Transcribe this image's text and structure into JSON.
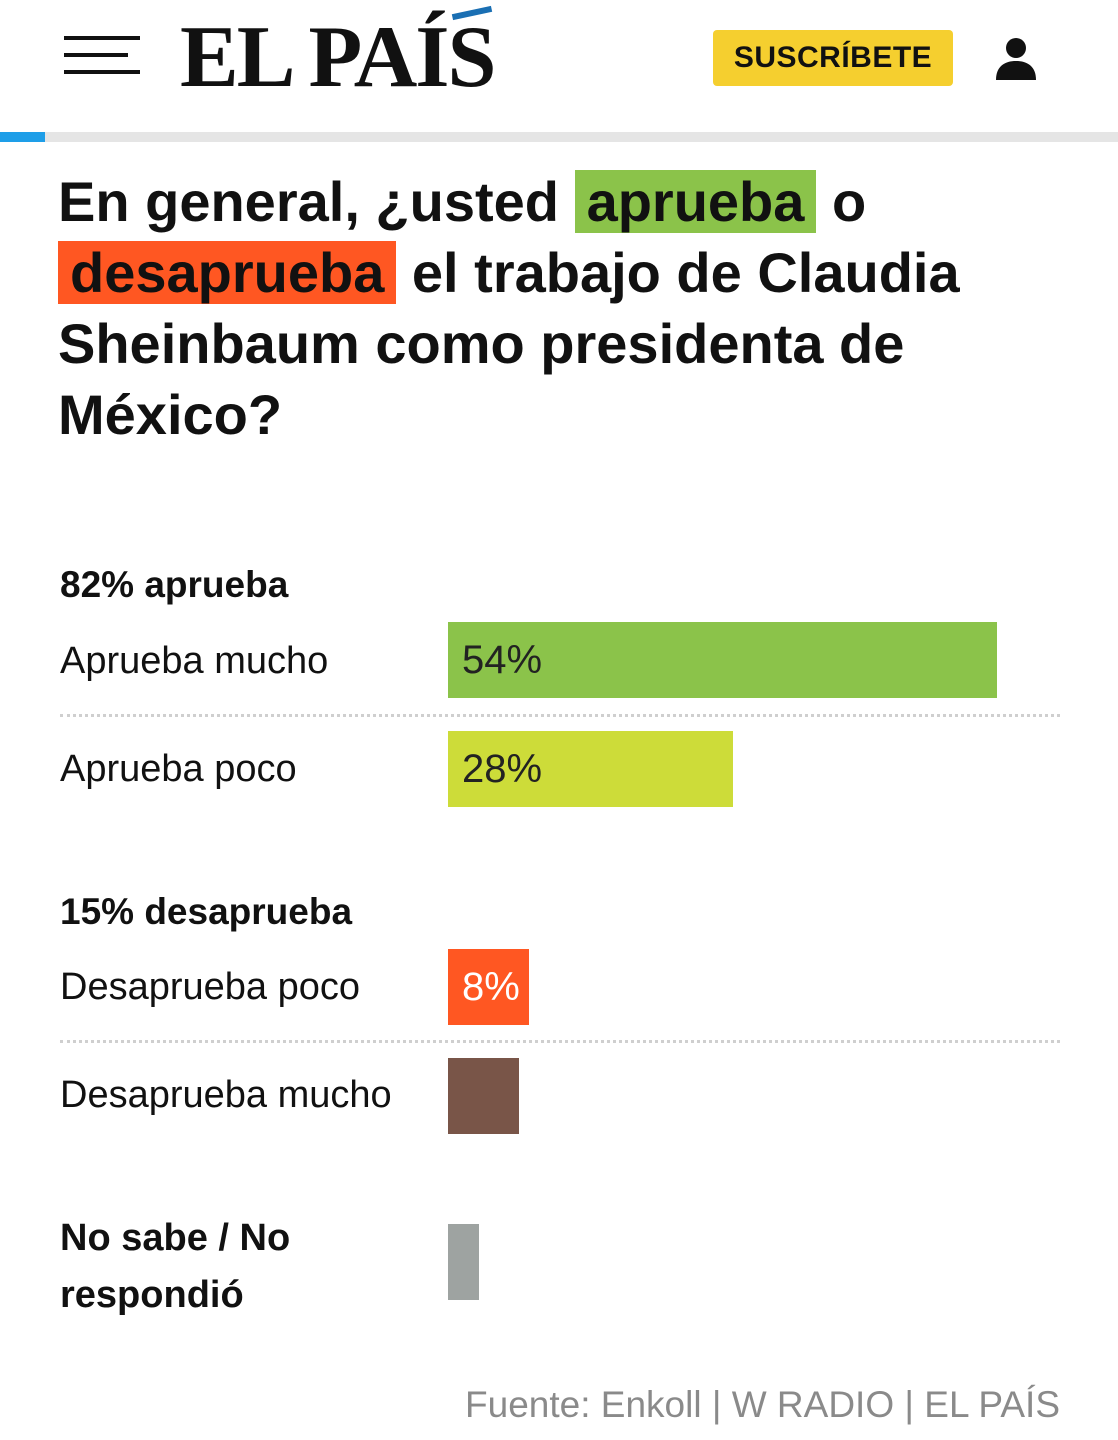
{
  "header": {
    "logo": "EL PAÍS",
    "subscribe_label": "SUSCRÍBETE",
    "reading_progress": 0.04,
    "colors": {
      "subscribe": "#f5cf2f",
      "progress": "#1e9ee8"
    }
  },
  "question": {
    "part1": "En general, ¿usted ",
    "highlight_approve": "aprueba",
    "part2": " o ",
    "highlight_disapprove": "desaprueba",
    "part3": " el trabajo de Claudia Sheinbaum como presidenta de México?"
  },
  "groups": {
    "approve": "82% aprueba",
    "disapprove": "15% desaprueba"
  },
  "no_answer_label": "No sabe / No respondió",
  "source": "Fuente: Enkoll | W RADIO | EL PAÍS",
  "chart_data": {
    "type": "bar",
    "orientation": "horizontal",
    "categories": [
      "Aprueba mucho",
      "Aprueba poco",
      "Desaprueba poco",
      "Desaprueba mucho",
      "No sabe / No respondió"
    ],
    "values": [
      54,
      28,
      8,
      7,
      3
    ],
    "labels": [
      "54%",
      "28%",
      "8%",
      "",
      ""
    ],
    "colors": [
      "#8bc34a",
      "#cddc39",
      "#ff5722",
      "#795548",
      "#9ea3a1"
    ],
    "groups": [
      {
        "label": "82% aprueba",
        "total": 82,
        "members": [
          "Aprueba mucho",
          "Aprueba poco"
        ]
      },
      {
        "label": "15% desaprueba",
        "total": 15,
        "members": [
          "Desaprueba poco",
          "Desaprueba mucho"
        ]
      }
    ],
    "xlim": [
      0,
      54
    ],
    "title": "En general, ¿usted aprueba o desaprueba el trabajo de Claudia Sheinbaum como presidenta de México?",
    "source": "Fuente: Enkoll | W RADIO | EL PAÍS",
    "grid": false
  }
}
